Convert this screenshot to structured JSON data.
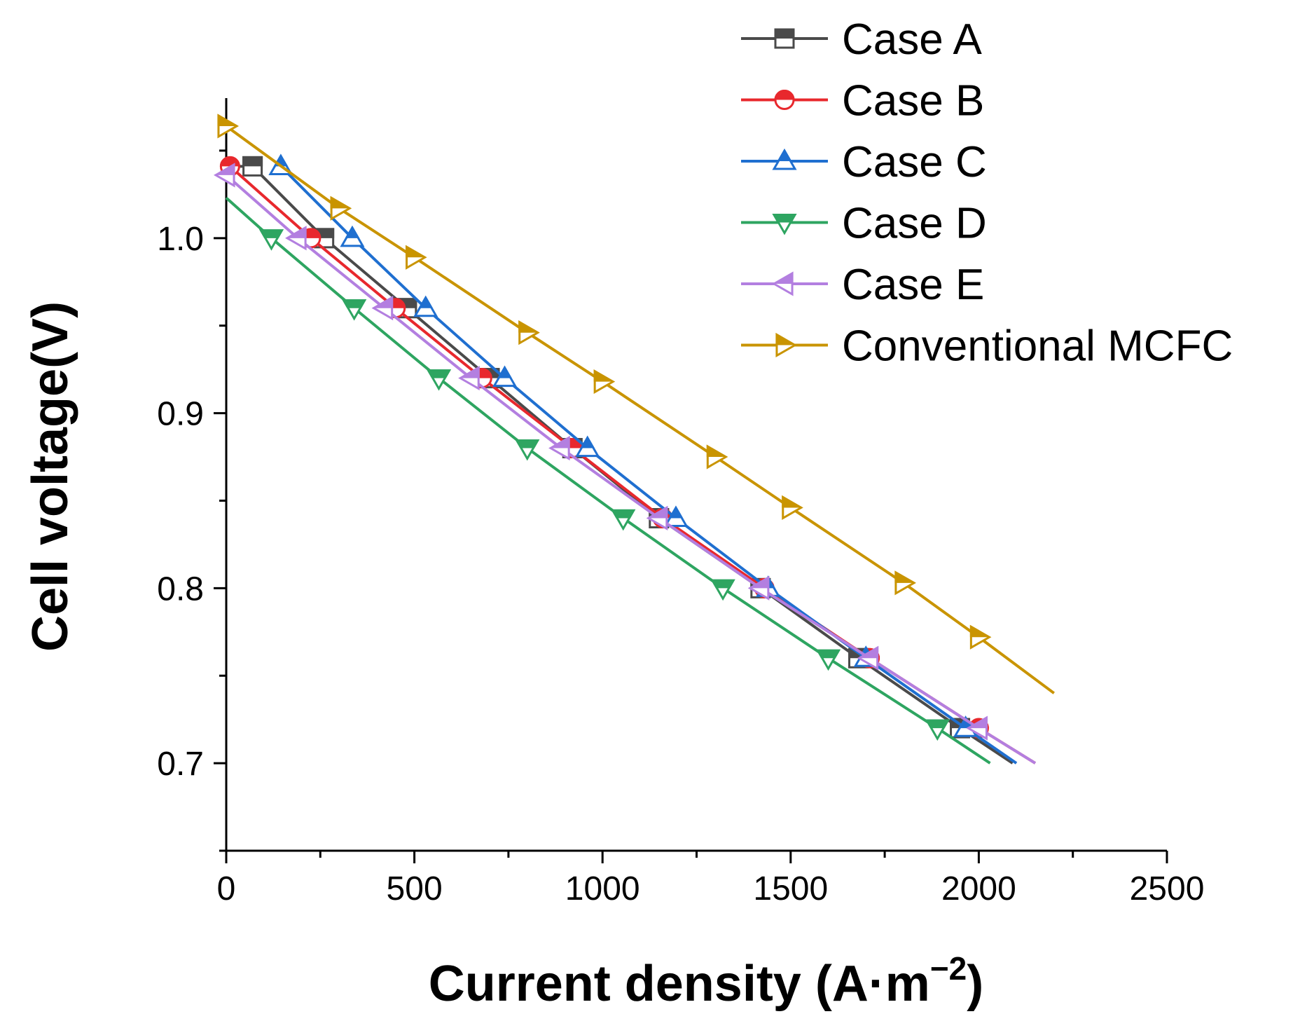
{
  "chart_data": {
    "type": "line",
    "title": "",
    "xlabel": "Current density (A·m",
    "xlabel_sup": "−2",
    "xlabel_close": ")",
    "ylabel": "Cell voltage(V)",
    "xlim": [
      0,
      2500
    ],
    "ylim": [
      0.65,
      1.08
    ],
    "xticks": [
      0,
      500,
      1000,
      1500,
      2000,
      2500
    ],
    "xtick_labels": [
      "0",
      "500",
      "1000",
      "1500",
      "2000",
      "2500"
    ],
    "yticks": [
      0.7,
      0.8,
      0.9,
      1.0
    ],
    "ytick_labels": [
      "0.7",
      "0.8",
      "0.9",
      "1.0"
    ],
    "x_minor_step": 250,
    "y_minor_step": 0.05,
    "legend_position": "top-right",
    "series": [
      {
        "name": "Case A",
        "color": "#4a4a4a",
        "marker": "square",
        "line": [
          [
            0,
            1.041
          ],
          [
            70,
            1.041
          ],
          [
            260,
            1.0
          ],
          [
            480,
            0.96
          ],
          [
            700,
            0.92
          ],
          [
            920,
            0.88
          ],
          [
            1150,
            0.84
          ],
          [
            1420,
            0.8
          ],
          [
            1680,
            0.76
          ],
          [
            1950,
            0.72
          ],
          [
            2090,
            0.7
          ]
        ],
        "markers": [
          [
            70,
            1.041
          ],
          [
            260,
            1.0
          ],
          [
            480,
            0.96
          ],
          [
            700,
            0.92
          ],
          [
            920,
            0.88
          ],
          [
            1150,
            0.84
          ],
          [
            1420,
            0.8
          ],
          [
            1680,
            0.76
          ],
          [
            1950,
            0.72
          ]
        ]
      },
      {
        "name": "Case B",
        "color": "#e8282d",
        "marker": "circle",
        "line": [
          [
            10,
            1.041
          ],
          [
            225,
            1.0
          ],
          [
            450,
            0.96
          ],
          [
            680,
            0.92
          ],
          [
            920,
            0.88
          ],
          [
            1160,
            0.84
          ],
          [
            1430,
            0.8
          ],
          [
            1710,
            0.76
          ],
          [
            2000,
            0.72
          ],
          [
            2150,
            0.7
          ]
        ],
        "markers": [
          [
            10,
            1.041
          ],
          [
            225,
            1.0
          ],
          [
            450,
            0.96
          ],
          [
            680,
            0.92
          ],
          [
            920,
            0.88
          ],
          [
            1160,
            0.84
          ],
          [
            1430,
            0.8
          ],
          [
            1710,
            0.76
          ],
          [
            2000,
            0.72
          ]
        ]
      },
      {
        "name": "Case C",
        "color": "#1f6fd0",
        "marker": "triangle-up",
        "line": [
          [
            145,
            1.041
          ],
          [
            335,
            1.0
          ],
          [
            530,
            0.96
          ],
          [
            740,
            0.92
          ],
          [
            960,
            0.88
          ],
          [
            1195,
            0.84
          ],
          [
            1440,
            0.8
          ],
          [
            1700,
            0.76
          ],
          [
            1965,
            0.72
          ],
          [
            2100,
            0.7
          ]
        ],
        "markers": [
          [
            145,
            1.041
          ],
          [
            335,
            1.0
          ],
          [
            530,
            0.96
          ],
          [
            740,
            0.92
          ],
          [
            960,
            0.88
          ],
          [
            1195,
            0.84
          ],
          [
            1440,
            0.8
          ],
          [
            1700,
            0.76
          ],
          [
            1965,
            0.72
          ]
        ]
      },
      {
        "name": "Case D",
        "color": "#2ea561",
        "marker": "triangle-down",
        "line": [
          [
            0,
            1.023
          ],
          [
            120,
            1.0
          ],
          [
            340,
            0.96
          ],
          [
            565,
            0.92
          ],
          [
            800,
            0.88
          ],
          [
            1055,
            0.84
          ],
          [
            1320,
            0.8
          ],
          [
            1600,
            0.76
          ],
          [
            1890,
            0.72
          ],
          [
            2030,
            0.7
          ]
        ],
        "markers": [
          [
            120,
            1.0
          ],
          [
            340,
            0.96
          ],
          [
            565,
            0.92
          ],
          [
            800,
            0.88
          ],
          [
            1055,
            0.84
          ],
          [
            1320,
            0.8
          ],
          [
            1600,
            0.76
          ],
          [
            1890,
            0.72
          ]
        ]
      },
      {
        "name": "Case E",
        "color": "#b37fe0",
        "marker": "triangle-left",
        "line": [
          [
            0,
            1.036
          ],
          [
            190,
            1.0
          ],
          [
            420,
            0.96
          ],
          [
            650,
            0.92
          ],
          [
            890,
            0.88
          ],
          [
            1150,
            0.84
          ],
          [
            1420,
            0.8
          ],
          [
            1710,
            0.76
          ],
          [
            2000,
            0.72
          ],
          [
            2150,
            0.7
          ]
        ],
        "markers": [
          [
            0,
            1.036
          ],
          [
            190,
            1.0
          ],
          [
            420,
            0.96
          ],
          [
            650,
            0.92
          ],
          [
            890,
            0.88
          ],
          [
            1150,
            0.84
          ],
          [
            1420,
            0.8
          ],
          [
            1710,
            0.76
          ],
          [
            2000,
            0.72
          ]
        ]
      },
      {
        "name": "Conventional MCFC",
        "color": "#c99400",
        "marker": "triangle-right",
        "line": [
          [
            0,
            1.064
          ],
          [
            300,
            1.017
          ],
          [
            500,
            0.989
          ],
          [
            800,
            0.946
          ],
          [
            1000,
            0.918
          ],
          [
            1300,
            0.875
          ],
          [
            1500,
            0.846
          ],
          [
            1800,
            0.803
          ],
          [
            2000,
            0.772
          ],
          [
            2200,
            0.74
          ]
        ],
        "markers": [
          [
            0,
            1.064
          ],
          [
            300,
            1.017
          ],
          [
            500,
            0.989
          ],
          [
            800,
            0.946
          ],
          [
            1000,
            0.918
          ],
          [
            1300,
            0.875
          ],
          [
            1500,
            0.846
          ],
          [
            1800,
            0.803
          ],
          [
            2000,
            0.772
          ]
        ]
      }
    ]
  }
}
